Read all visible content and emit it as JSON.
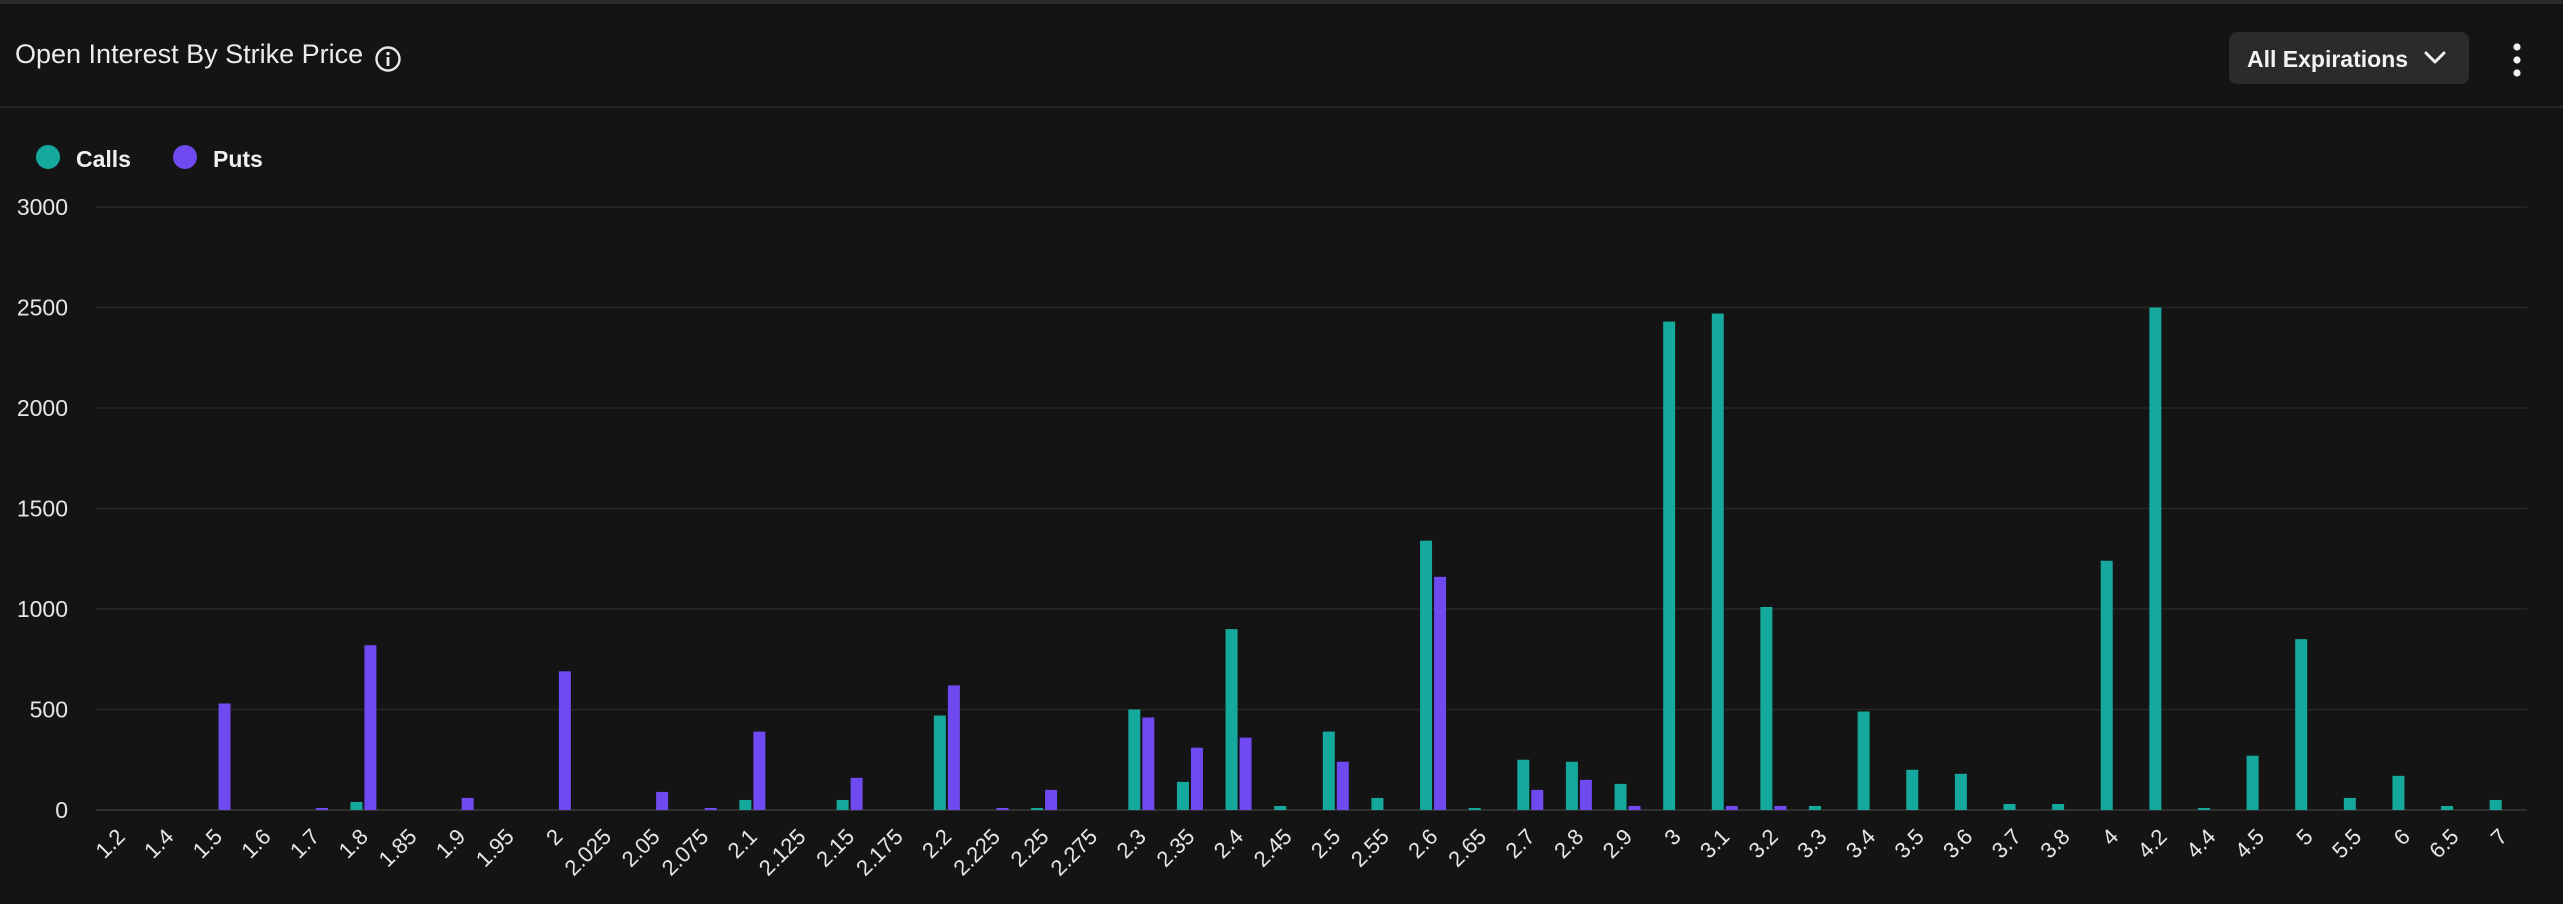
{
  "header": {
    "title": "Open Interest By Strike Price",
    "expiration_filter": "All Expirations"
  },
  "icons": {
    "info": "info-icon",
    "dropdown": "chevron-down-icon",
    "menu": "kebab-menu-icon"
  },
  "colors": {
    "calls": "#14a99c",
    "puts": "#6e4af0",
    "background": "#141414",
    "grid": "#262626"
  },
  "chart_data": {
    "type": "bar",
    "ylim": [
      0,
      3000
    ],
    "yticks": [
      "0",
      "500",
      "1000",
      "1500",
      "2000",
      "2500",
      "3000"
    ],
    "legend": "top-left",
    "grid": true,
    "categories": [
      "1.2",
      "1.4",
      "1.5",
      "1.6",
      "1.7",
      "1.8",
      "1.85",
      "1.9",
      "1.95",
      "2",
      "2.025",
      "2.05",
      "2.075",
      "2.1",
      "2.125",
      "2.15",
      "2.175",
      "2.2",
      "2.225",
      "2.25",
      "2.275",
      "2.3",
      "2.35",
      "2.4",
      "2.45",
      "2.5",
      "2.55",
      "2.6",
      "2.65",
      "2.7",
      "2.8",
      "2.9",
      "3",
      "3.1",
      "3.2",
      "3.3",
      "3.4",
      "3.5",
      "3.6",
      "3.7",
      "3.8",
      "4",
      "4.2",
      "4.4",
      "4.5",
      "5",
      "5.5",
      "6",
      "6.5",
      "7"
    ],
    "series": [
      {
        "name": "Calls",
        "values": [
          0,
          0,
          0,
          0,
          0,
          40,
          0,
          0,
          0,
          0,
          0,
          0,
          0,
          50,
          0,
          50,
          0,
          470,
          0,
          10,
          0,
          500,
          140,
          900,
          20,
          390,
          60,
          1340,
          10,
          250,
          240,
          130,
          2430,
          2470,
          1010,
          20,
          490,
          200,
          180,
          30,
          30,
          1240,
          2500,
          10,
          270,
          850,
          60,
          170,
          20,
          50
        ]
      },
      {
        "name": "Puts",
        "values": [
          0,
          0,
          530,
          0,
          10,
          820,
          0,
          60,
          0,
          690,
          0,
          90,
          10,
          390,
          0,
          160,
          0,
          620,
          10,
          100,
          0,
          460,
          310,
          360,
          0,
          240,
          0,
          1160,
          0,
          100,
          150,
          20,
          0,
          20,
          20,
          0,
          0,
          0,
          0,
          0,
          0,
          0,
          0,
          0,
          0,
          0,
          0,
          0,
          0,
          0
        ]
      }
    ]
  }
}
